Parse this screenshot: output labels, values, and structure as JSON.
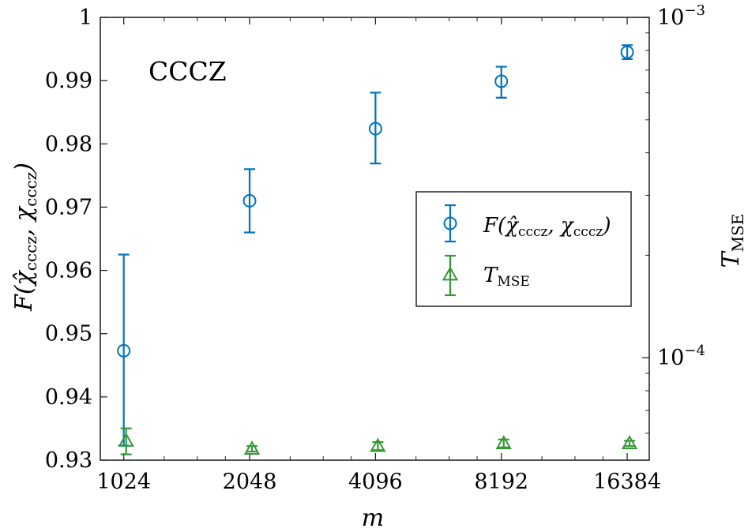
{
  "chart_data": {
    "type": "scatter",
    "annotation": "CCCZ",
    "x_axis": {
      "label": "m",
      "scale": "log2",
      "range": [
        900,
        18500
      ],
      "ticks": [
        1024,
        2048,
        4096,
        8192,
        16384
      ],
      "tick_labels": [
        "1024",
        "2048",
        "4096",
        "8192",
        "16384"
      ]
    },
    "y_left": {
      "label_main": "F(",
      "label_hat_chi": "χ̂",
      "label_sub": "cccz",
      "label_sep": ", ",
      "label_chi": "χ",
      "label_close": ")",
      "range": [
        0.93,
        1.0
      ],
      "ticks": [
        0.93,
        0.94,
        0.95,
        0.96,
        0.97,
        0.98,
        0.99,
        1.0
      ],
      "tick_labels": [
        "0.93",
        "0.94",
        "0.95",
        "0.96",
        "0.97",
        "0.98",
        "0.99",
        "1"
      ]
    },
    "y_right": {
      "label_main": "T",
      "label_sub": "MSE",
      "scale": "log",
      "range": [
        5e-05,
        0.001
      ],
      "major_ticks": [
        0.0001,
        0.001
      ],
      "tick_label_base": "10",
      "tick_label_exps": [
        "−4",
        "−3"
      ]
    },
    "series": [
      {
        "name": "F(χ̂cccz, χcccz)",
        "axis": "left",
        "marker": "circle",
        "color": "#0072BD",
        "x": [
          1024,
          2048,
          4096,
          8192,
          16384
        ],
        "y": [
          0.9473,
          0.971,
          0.9824,
          0.9899,
          0.9945
        ],
        "err_low": [
          0.9323,
          0.966,
          0.9769,
          0.9873,
          0.9934
        ],
        "err_high": [
          0.9625,
          0.976,
          0.9881,
          0.9922,
          0.9956
        ]
      },
      {
        "name": "TMSE",
        "axis": "right",
        "marker": "triangle",
        "color": "#339933",
        "x": [
          1024,
          2048,
          4096,
          8192,
          16384
        ],
        "y": [
          5.7e-05,
          5.4e-05,
          5.5e-05,
          5.6e-05,
          5.6e-05
        ],
        "err_low": [
          5.2e-05,
          5.3e-05,
          5.35e-05,
          5.45e-05,
          5.5e-05
        ],
        "err_high": [
          6.2e-05,
          5.5e-05,
          5.65e-05,
          5.75e-05,
          5.7e-05
        ]
      }
    ],
    "legend": {
      "position": "center-right",
      "entries": [
        {
          "main": "F(",
          "hat_chi": "χ̂",
          "sub": "cccz",
          "sep": ", ",
          "chi": "χ",
          "close": ")"
        },
        {
          "main": "T",
          "sub": "MSE"
        }
      ]
    },
    "grid": false
  }
}
